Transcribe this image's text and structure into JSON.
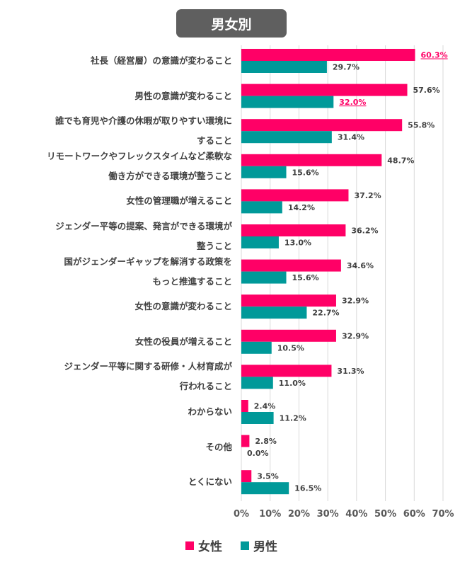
{
  "chart_data": {
    "type": "bar",
    "orientation": "horizontal",
    "title": "男女別",
    "categories": [
      [
        "社長（経営層）の意識が変わること"
      ],
      [
        "男性の意識が変わること"
      ],
      [
        "誰でも育児や介護の休暇が取りやすい環境に",
        "すること"
      ],
      [
        "リモートワークやフレックスタイムなど柔軟な",
        "働き方ができる環境が整うこと"
      ],
      [
        "女性の管理職が増えること"
      ],
      [
        "ジェンダー平等の提案、発言ができる環境が",
        "整うこと"
      ],
      [
        "国がジェンダーギャップを解消する政策を",
        "もっと推進すること"
      ],
      [
        "女性の意識が変わること"
      ],
      [
        "女性の役員が増えること"
      ],
      [
        "ジェンダー平等に関する研修・人材育成が",
        "行われること"
      ],
      [
        "わからない"
      ],
      [
        "その他"
      ],
      [
        "とくにない"
      ]
    ],
    "series": [
      {
        "name": "女性",
        "color": "#ff0066",
        "values": [
          60.3,
          57.6,
          55.8,
          48.7,
          37.2,
          36.2,
          34.6,
          32.9,
          32.9,
          31.3,
          2.4,
          2.8,
          3.5
        ],
        "labels": [
          "60.3%",
          "57.6%",
          "55.8%",
          "48.7%",
          "37.2%",
          "36.2%",
          "34.6%",
          "32.9%",
          "32.9%",
          "31.3%",
          "2.4%",
          "2.8%",
          "3.5%"
        ],
        "highlight": [
          0
        ]
      },
      {
        "name": "男性",
        "color": "#009999",
        "values": [
          29.7,
          32.0,
          31.4,
          15.6,
          14.2,
          13.0,
          15.6,
          22.7,
          10.5,
          11.0,
          11.2,
          0.0,
          16.5
        ],
        "labels": [
          "29.7%",
          "32.0%",
          "31.4%",
          "15.6%",
          "14.2%",
          "13.0%",
          "15.6%",
          "22.7%",
          "10.5%",
          "11.0%",
          "11.2%",
          "0.0%",
          "16.5%"
        ],
        "highlight": [
          1
        ]
      }
    ],
    "highlight_color": "#ff0066",
    "xlim": [
      0,
      70
    ],
    "xticks": [
      "0%",
      "10%",
      "20%",
      "30%",
      "40%",
      "50%",
      "60%",
      "70%"
    ],
    "grid": true,
    "legend": "bottom"
  }
}
